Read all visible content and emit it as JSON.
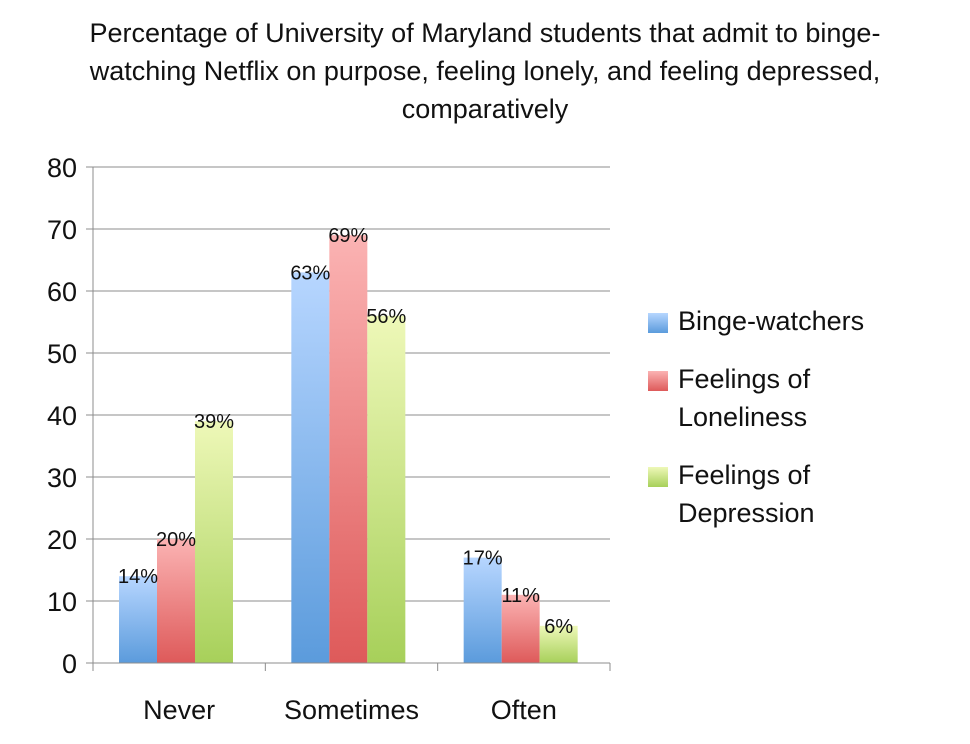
{
  "chart_data": {
    "type": "bar",
    "title_lines": [
      "Percentage of University of Maryland students that admit to binge-",
      "watching Netflix on purpose, feeling lonely, and feeling depressed,",
      "comparatively"
    ],
    "categories": [
      "Never",
      "Sometimes",
      "Often"
    ],
    "series": [
      {
        "name": "Binge-watchers",
        "legend_lines": [
          "Binge-watchers"
        ],
        "values": [
          14,
          63,
          17
        ],
        "labels": [
          "14%",
          "63%",
          "17%"
        ],
        "color_light": "#b7d6ff",
        "color_dark": "#5b9bdc"
      },
      {
        "name": "Feelings of Loneliness",
        "legend_lines": [
          "Feelings of",
          "Loneliness"
        ],
        "values": [
          20,
          69,
          11
        ],
        "labels": [
          "20%",
          "69%",
          "11%"
        ],
        "color_light": "#fbb3b3",
        "color_dark": "#de5a5a"
      },
      {
        "name": "Feelings of Depression",
        "legend_lines": [
          "Feelings of",
          "Depression"
        ],
        "values": [
          39,
          56,
          6
        ],
        "labels": [
          "39%",
          "56%",
          "6%"
        ],
        "color_light": "#eef8b8",
        "color_dark": "#a7d05a"
      }
    ],
    "ylim": [
      0,
      80
    ],
    "yticks": [
      0,
      10,
      20,
      30,
      40,
      50,
      60,
      70,
      80
    ],
    "ytick_labels": [
      "0",
      "10",
      "20",
      "30",
      "40",
      "50",
      "60",
      "70",
      "80"
    ],
    "xlabel": "",
    "ylabel": "",
    "grid": true,
    "legend_position": "right"
  }
}
